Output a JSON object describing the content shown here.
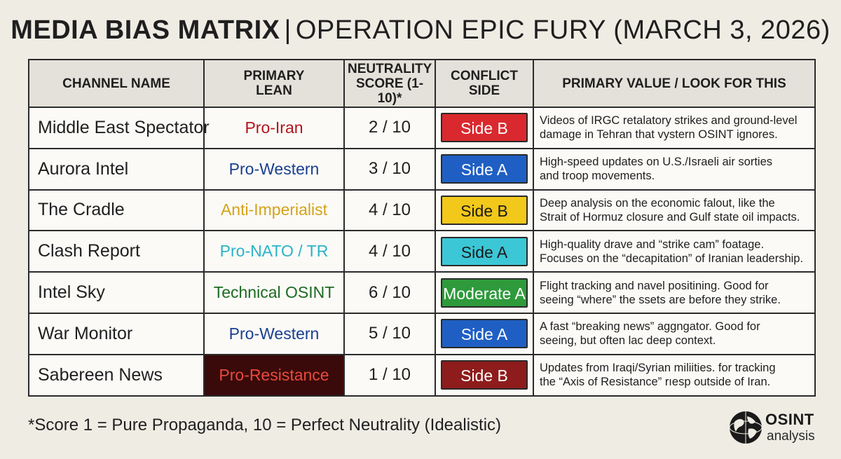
{
  "title": {
    "main": "MEDIA BIAS MATRIX",
    "separator": "|",
    "subtitle": "OPERATION EPIC FURY (MARCH 3, 2026)"
  },
  "table": {
    "headers": {
      "channel": "CHANNEL NAME",
      "lean_line1": "PRIMARY",
      "lean_line2": "LEAN",
      "score_line1": "NEUTRALITY",
      "score_line2": "SCORE (1-10)*",
      "side_line1": "CONFLICT",
      "side_line2": "SIDE",
      "value": "PRIMARY VALUE / LOOK FOR THIS"
    },
    "rows": [
      {
        "name": "Middle East Spectator",
        "lean": "Pro-Iran",
        "lean_color": "#b3141c",
        "score": "2 / 10",
        "side": "Side B",
        "side_color": "#d9292e",
        "desc_line1": "Videos of IRGC retalatory strikes and ground-level",
        "desc_line2": "damage in Tehran that vystern OSINT ignores."
      },
      {
        "name": "Aurora Intel",
        "lean": "Pro-Western",
        "lean_color": "#1a3f8f",
        "score": "3 / 10",
        "side": "Side A",
        "side_color": "#1f5fc4",
        "desc_line1": "High-speed updates on U.S./Israeli air sorties",
        "desc_line2": "and troop movements."
      },
      {
        "name": "The Cradle",
        "lean": "Anti-Imperialist",
        "lean_color": "#d4a21a",
        "score": "4 / 10",
        "side": "Side B",
        "side_color": "#f2c81a",
        "side_text_color": "#1a1a1a",
        "desc_line1": "Deep analysis on the economic falout, like the",
        "desc_line2": "Strait of Hormuz closure and Gulf state oil impacts."
      },
      {
        "name": "Clash Report",
        "lean": "Pro-NATO / TR",
        "lean_color": "#2bb3c7",
        "score": "4 / 10",
        "side": "Side A",
        "side_color": "#3cc7d6",
        "side_text_color": "#1a1a1a",
        "desc_line1": "High-quality drave and “strike cam” foatage.",
        "desc_line2": "Focuses on the “decapitation” of Iranian leadership."
      },
      {
        "name": "Intel Sky",
        "lean": "Technical OSINT",
        "lean_color": "#1d6b22",
        "score": "6 / 10",
        "side": "Moderate A",
        "side_color": "#2e9a3b",
        "desc_line1": "Flight tracking and navel positining. Good for",
        "desc_line2": "seeing “where” the ssets are before they strike."
      },
      {
        "name": "War Monitor",
        "lean": "Pro-Western",
        "lean_color": "#1a3f8f",
        "score": "5 / 10",
        "side": "Side A",
        "side_color": "#1f5fc4",
        "desc_line1": "A fast “breaking news” aggngator. Good for",
        "desc_line2": "seeing, but often lac deep context."
      },
      {
        "name": "Sabereen News",
        "lean": "Pro-Resistance",
        "lean_color": "#e84a3c",
        "lean_bg": "#3a0a0a",
        "score": "1 / 10",
        "side": "Side B",
        "side_color": "#8e1c1c",
        "desc_line1": "Updates from Iraqi/Syrian miliities. for tracking",
        "desc_line2": "the “Axis of Resistance” rıesp outside of Iran."
      }
    ]
  },
  "footnote": "*Score 1 = Pure Propaganda, 10 = Perfect Neutrality (Idealistic)",
  "logo": {
    "line1": "OSINT",
    "line2": "analysis",
    "icon": "globe-icon"
  }
}
